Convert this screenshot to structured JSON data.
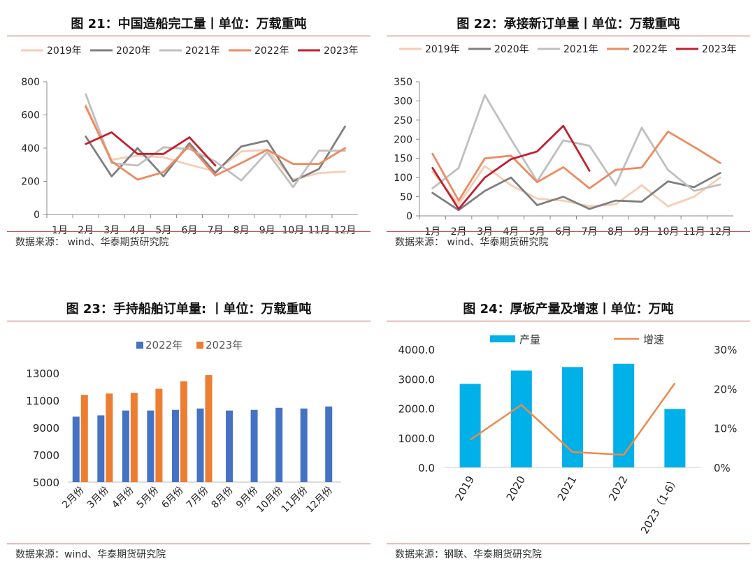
{
  "panels": [
    {
      "title": "图 21：中国造船完工量丨单位：万载重吨",
      "source": "数据来源： wind、华泰期货研究院"
    },
    {
      "title": "图 22：承接新订单量丨单位：万载重吨",
      "source": "数据来源： wind、华泰期货研究院"
    },
    {
      "title": "图 23：手持船舶订单量: 丨单位：万载重吨",
      "source": "数据来源：wind、华泰期货研究院"
    },
    {
      "title": "图 24：厚板产量及增速丨单位：万吨",
      "source": "数据来源：钢联、华泰期货研究院"
    }
  ],
  "chart_data": [
    {
      "type": "line",
      "categories": [
        "1月",
        "2月",
        "3月",
        "4月",
        "5月",
        "6月",
        "7月",
        "8月",
        "9月",
        "10月",
        "11月",
        "12月"
      ],
      "ylim": [
        0,
        800
      ],
      "yticks": [
        0,
        200,
        400,
        600,
        800
      ],
      "grid": false,
      "legend": "top",
      "series": [
        {
          "name": "2019年",
          "color": "#f6cdb5",
          "values": [
            null,
            660,
            330,
            355,
            345,
            300,
            260,
            380,
            390,
            210,
            250,
            258
          ]
        },
        {
          "name": "2020年",
          "color": "#7f7f7f",
          "values": [
            null,
            470,
            230,
            400,
            230,
            430,
            250,
            410,
            445,
            200,
            275,
            530
          ]
        },
        {
          "name": "2021年",
          "color": "#bfbfbf",
          "values": [
            null,
            725,
            310,
            295,
            405,
            395,
            320,
            205,
            375,
            165,
            385,
            385
          ]
        },
        {
          "name": "2022年",
          "color": "#ed8a62",
          "values": [
            null,
            650,
            320,
            210,
            255,
            415,
            235,
            310,
            390,
            305,
            305,
            400
          ]
        },
        {
          "name": "2023年",
          "color": "#c0202e",
          "values": [
            null,
            425,
            495,
            365,
            365,
            465,
            295,
            null,
            null,
            null,
            null,
            null
          ]
        }
      ]
    },
    {
      "type": "line",
      "categories": [
        "1月",
        "2月",
        "3月",
        "4月",
        "5月",
        "6月",
        "7月",
        "8月",
        "9月",
        "10月",
        "11月",
        "12月"
      ],
      "ylim": [
        0,
        350
      ],
      "yticks": [
        0,
        50,
        100,
        150,
        200,
        250,
        300,
        350
      ],
      "grid": false,
      "legend": "top",
      "series": [
        {
          "name": "2019年",
          "color": "#f6cdb5",
          "values": [
            115,
            30,
            130,
            80,
            45,
            40,
            25,
            30,
            80,
            25,
            50,
            100
          ]
        },
        {
          "name": "2020年",
          "color": "#7f7f7f",
          "values": [
            60,
            15,
            65,
            100,
            28,
            50,
            18,
            40,
            37,
            90,
            75,
            112
          ]
        },
        {
          "name": "2021年",
          "color": "#bfbfbf",
          "values": [
            72,
            125,
            315,
            200,
            90,
            197,
            183,
            80,
            230,
            120,
            65,
            82
          ]
        },
        {
          "name": "2022年",
          "color": "#ed8a62",
          "values": [
            162,
            40,
            150,
            157,
            88,
            127,
            72,
            120,
            126,
            220,
            180,
            138
          ]
        },
        {
          "name": "2023年",
          "color": "#c0202e",
          "values": [
            125,
            18,
            100,
            148,
            168,
            235,
            118,
            null,
            null,
            null,
            null,
            null
          ]
        }
      ]
    },
    {
      "type": "bar",
      "categories": [
        "2月份",
        "3月份",
        "4月份",
        "5月份",
        "6月份",
        "7月份",
        "8月份",
        "9月份",
        "10月份",
        "11月份",
        "12月份"
      ],
      "ylim": [
        5000,
        13000
      ],
      "yticks": [
        5000,
        7000,
        9000,
        11000,
        13000
      ],
      "grid": false,
      "legend": "top",
      "series": [
        {
          "name": "2022年",
          "color": "#4472c4",
          "values": [
            9800,
            9900,
            10250,
            10250,
            10300,
            10400,
            10250,
            10300,
            10450,
            10400,
            10550
          ]
        },
        {
          "name": "2023年",
          "color": "#ed7d31",
          "values": [
            11400,
            11500,
            11550,
            11850,
            12400,
            12850,
            null,
            null,
            null,
            null,
            null
          ]
        }
      ]
    },
    {
      "type": "bar",
      "categories": [
        "2019",
        "2020",
        "2021",
        "2022",
        "2023（1-6）"
      ],
      "ylim": [
        0,
        4000
      ],
      "yticks": [
        "0.0",
        "1000.0",
        "2000.0",
        "3000.0",
        "4000.0"
      ],
      "y2lim": [
        0,
        30
      ],
      "y2ticks": [
        "0%",
        "10%",
        "20%",
        "30%"
      ],
      "grid": false,
      "legend": "top",
      "series": [
        {
          "name": "产量",
          "type": "bar",
          "axis": "left",
          "color": "#00b0e8",
          "values": [
            2830,
            3280,
            3400,
            3510,
            1980
          ]
        },
        {
          "name": "增速",
          "type": "line",
          "axis": "right",
          "color": "#ed8a4a",
          "values": [
            7.0,
            15.9,
            3.9,
            3.2,
            21.4
          ]
        }
      ]
    }
  ]
}
